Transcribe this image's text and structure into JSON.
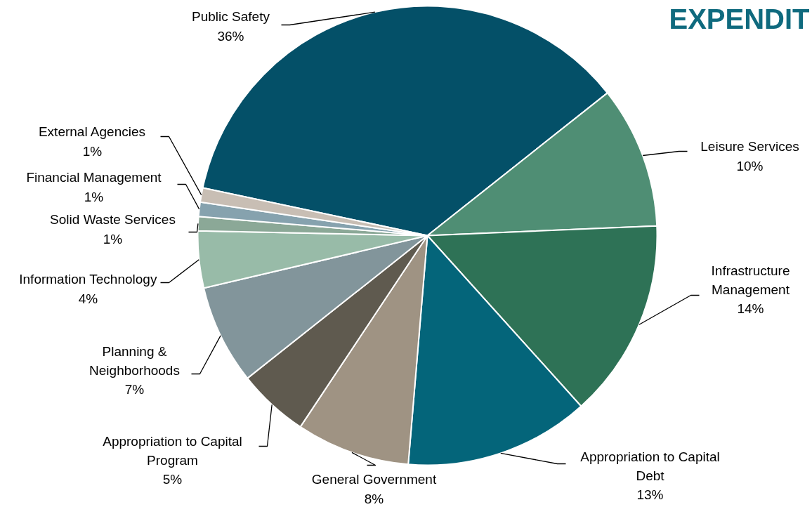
{
  "chart_data": {
    "type": "pie",
    "title": "EXPENDIT",
    "categories": [
      "Public Safety",
      "Leisure Services",
      "Infrastructure Management",
      "Appropriation to Capital Debt",
      "General Government",
      "Appropriation to Capital Program",
      "Planning & Neighborhoods",
      "Information Technology",
      "Solid Waste Services",
      "Financial Management",
      "External Agencies"
    ],
    "values": [
      36,
      10,
      14,
      13,
      8,
      5,
      7,
      4,
      1,
      1,
      1
    ],
    "value_labels": [
      "36%",
      "10%",
      "14%",
      "13%",
      "8%",
      "5%",
      "7%",
      "4%",
      "1%",
      "1%",
      "1%"
    ],
    "colors": [
      "#045068",
      "#4f8e74",
      "#2e7256",
      "#04657a",
      "#9f9383",
      "#5f5a4f",
      "#82959b",
      "#98bba8",
      "#8ba897",
      "#86a2ae",
      "#c8beb4"
    ]
  }
}
